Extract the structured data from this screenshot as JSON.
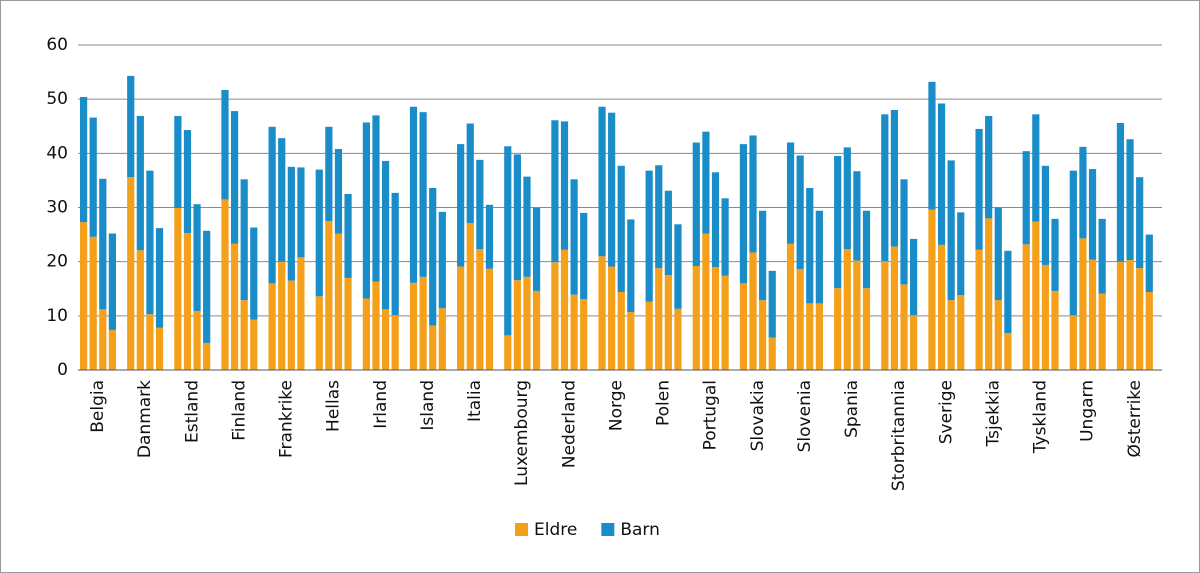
{
  "chart_data": {
    "type": "grouped-stacked-bar",
    "categories": [
      "Belgia",
      "Danmark",
      "Estland",
      "Finland",
      "Frankrike",
      "Hellas",
      "Irland",
      "Island",
      "Italia",
      "Luxembourg",
      "Nederland",
      "Norge",
      "Polen",
      "Portugal",
      "Slovakia",
      "Slovenia",
      "Spania",
      "Storbritannia",
      "Sverige",
      "Tsjekkia",
      "Tyskland",
      "Ungarn",
      "Østerrike"
    ],
    "series": [
      {
        "name": "Eldre",
        "color": "#f5a01a",
        "values": [
          [
            27.3,
            24.6,
            11.2,
            7.4
          ],
          [
            35.6,
            22.1,
            10.3,
            7.8
          ],
          [
            29.9,
            25.3,
            10.9,
            5.0
          ],
          [
            31.5,
            23.3,
            12.9,
            9.3
          ],
          [
            16.0,
            20.0,
            16.5,
            20.8
          ],
          [
            13.6,
            27.5,
            25.2,
            17.0
          ],
          [
            13.2,
            16.3,
            11.2,
            10.1
          ],
          [
            16.1,
            17.2,
            8.2,
            11.4
          ],
          [
            19.1,
            27.1,
            22.3,
            18.7
          ],
          [
            6.4,
            16.6,
            17.2,
            14.6
          ],
          [
            19.9,
            22.2,
            13.9,
            13.1
          ],
          [
            21.0,
            19.1,
            14.4,
            10.7
          ],
          [
            12.6,
            18.8,
            17.5,
            11.3
          ],
          [
            19.2,
            25.2,
            19.0,
            17.4
          ],
          [
            16.0,
            21.7,
            12.9,
            6.0
          ],
          [
            23.3,
            18.6,
            12.3,
            12.3
          ],
          [
            15.1,
            22.3,
            20.2,
            15.1
          ],
          [
            20.1,
            22.8,
            15.8,
            10.1
          ],
          [
            29.6,
            23.1,
            12.9,
            13.8
          ],
          [
            22.2,
            28.0,
            12.9,
            6.8
          ],
          [
            23.2,
            27.4,
            19.4,
            14.6
          ],
          [
            10.1,
            24.3,
            20.4,
            14.1
          ],
          [
            20.0,
            20.3,
            18.8,
            14.4
          ]
        ]
      },
      {
        "name": "Barn",
        "color": "#1a8cc8",
        "values": [
          [
            23.1,
            22.0,
            24.1,
            17.8
          ],
          [
            18.7,
            24.8,
            26.5,
            18.4
          ],
          [
            17.0,
            19.0,
            19.7,
            20.7
          ],
          [
            20.2,
            24.5,
            22.3,
            17.0
          ],
          [
            28.9,
            22.8,
            21.0,
            16.6
          ],
          [
            23.4,
            17.4,
            15.6,
            15.5
          ],
          [
            32.5,
            30.7,
            27.4,
            22.6
          ],
          [
            32.5,
            30.4,
            25.4,
            17.8
          ],
          [
            22.6,
            18.4,
            16.5,
            11.8
          ],
          [
            34.9,
            23.2,
            18.5,
            15.3
          ],
          [
            26.2,
            23.7,
            21.3,
            15.9
          ],
          [
            27.6,
            28.4,
            23.3,
            17.1
          ],
          [
            24.2,
            19.0,
            15.6,
            15.6
          ],
          [
            22.8,
            18.8,
            17.5,
            14.3
          ],
          [
            25.7,
            21.6,
            16.5,
            12.3
          ],
          [
            18.7,
            21.0,
            21.3,
            17.1
          ],
          [
            24.4,
            18.8,
            16.5,
            14.3
          ],
          [
            27.1,
            25.2,
            19.4,
            14.1
          ],
          [
            23.6,
            26.1,
            25.8,
            15.3
          ],
          [
            22.3,
            18.9,
            17.1,
            15.2
          ],
          [
            17.2,
            19.8,
            18.3,
            13.3
          ],
          [
            26.7,
            16.9,
            16.7,
            13.8
          ],
          [
            25.6,
            22.3,
            16.8,
            10.6
          ]
        ]
      }
    ],
    "ylim": [
      0,
      60
    ],
    "yticks": [
      0,
      10,
      20,
      30,
      40,
      50,
      60
    ],
    "grid": true,
    "legend": "bottom"
  }
}
